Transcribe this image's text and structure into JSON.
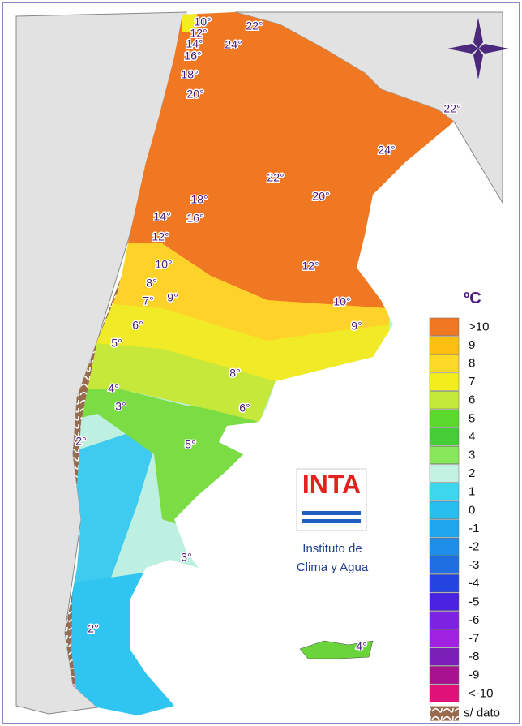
{
  "isotherm_labels": [
    "10°",
    "12°",
    "14°",
    "16°",
    "22°",
    "24°",
    "18°",
    "20°",
    "22°",
    "24°",
    "22°",
    "20°",
    "18°",
    "14°",
    "16°",
    "12°",
    "10°",
    "12°",
    "8°",
    "7°",
    "9°",
    "10°",
    "9°",
    "6°",
    "5°",
    "8°",
    "4°",
    "3°",
    "6°",
    "2°",
    "5°",
    "3°",
    "2°",
    "4°"
  ],
  "legend": {
    "title": "ºC",
    "items": [
      {
        "label": ">10",
        "color": "#f07822"
      },
      {
        "label": "9",
        "color": "#ffbf10"
      },
      {
        "label": "8",
        "color": "#ffd928"
      },
      {
        "label": "7",
        "color": "#f2ee1e"
      },
      {
        "label": "6",
        "color": "#c4e83a"
      },
      {
        "label": "5",
        "color": "#5ad82c"
      },
      {
        "label": "4",
        "color": "#45cc36"
      },
      {
        "label": "3",
        "color": "#88e65a"
      },
      {
        "label": "2",
        "color": "#c4f2e2"
      },
      {
        "label": "1",
        "color": "#3ed6ef"
      },
      {
        "label": "0",
        "color": "#28bff0"
      },
      {
        "label": "-1",
        "color": "#1fa6ef"
      },
      {
        "label": "-2",
        "color": "#1e8ee8"
      },
      {
        "label": "-3",
        "color": "#1f6fe0"
      },
      {
        "label": "-4",
        "color": "#2444e2"
      },
      {
        "label": "-5",
        "color": "#4a22e2"
      },
      {
        "label": "-6",
        "color": "#7d22e0"
      },
      {
        "label": "-7",
        "color": "#a022e0"
      },
      {
        "label": "-8",
        "color": "#7c1fb8"
      },
      {
        "label": "-9",
        "color": "#a8128e"
      },
      {
        "label": "<-10",
        "color": "#e0127a"
      }
    ],
    "no_data": "s/ dato"
  },
  "logo": {
    "text": "INTA",
    "caption_line_1": "Instituto de",
    "caption_line_2": "Clima y Agua"
  }
}
